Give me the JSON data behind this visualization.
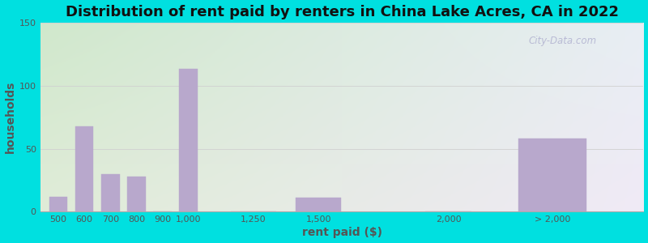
{
  "title": "Distribution of rent paid by renters in China Lake Acres, CA in 2022",
  "xlabel": "rent paid ($)",
  "ylabel": "households",
  "categories": [
    "500",
    "600",
    "700",
    "800",
    "900",
    "1,000",
    "1,250",
    "1,500",
    "2,000",
    "> 2,000"
  ],
  "x_positions": [
    500,
    600,
    700,
    800,
    900,
    1000,
    1250,
    1500,
    2000,
    2400
  ],
  "bar_widths": [
    80,
    80,
    80,
    80,
    80,
    80,
    200,
    200,
    200,
    300
  ],
  "values": [
    12,
    68,
    30,
    28,
    0,
    113,
    0,
    11,
    0,
    58
  ],
  "bar_color": "#b8a8cc",
  "bar_edgecolor": "#b8a8cc",
  "background_outer": "#00e0e0",
  "background_top_left": "#d0e8cc",
  "background_top_right": "#e8eef4",
  "background_bottom_left": "#e0ecd8",
  "background_bottom_right": "#f0eaf6",
  "ylim": [
    0,
    150
  ],
  "yticks": [
    0,
    50,
    100,
    150
  ],
  "xlim": [
    430,
    2750
  ],
  "xtick_positions": [
    500,
    600,
    700,
    800,
    900,
    1000,
    1250,
    1500,
    2000,
    2400
  ],
  "title_fontsize": 13,
  "axis_label_fontsize": 10,
  "tick_fontsize": 8,
  "watermark_text": "City-Data.com",
  "grid_color": "#d0d0d0"
}
